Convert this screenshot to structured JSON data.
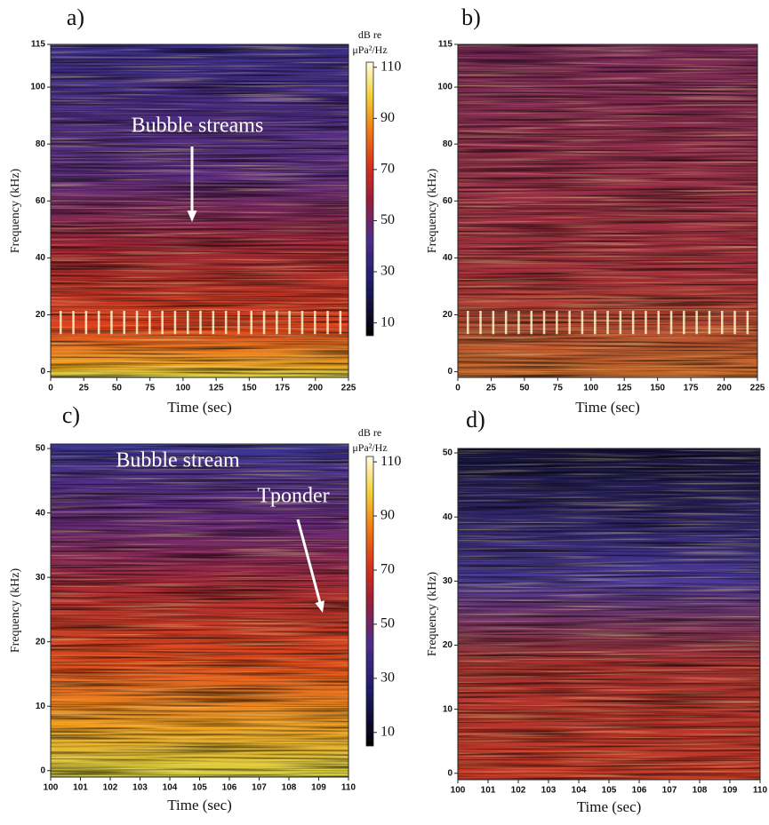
{
  "chart_data": [
    {
      "type": "heatmap",
      "panel_label": "a)",
      "xlabel": "Time (sec)",
      "ylabel": "Frequency (kHz)",
      "xlim": [
        0,
        225
      ],
      "xticks": [
        0,
        25,
        50,
        75,
        100,
        125,
        150,
        175,
        200,
        225
      ],
      "ylim": [
        -2,
        115
      ],
      "yticks": [
        0,
        20,
        40,
        60,
        80,
        100,
        115
      ],
      "colorbar": {
        "label": [
          "dB re",
          "μPa²/Hz"
        ],
        "lim": [
          5,
          112
        ],
        "ticks": [
          10,
          30,
          50,
          70,
          90,
          110
        ]
      },
      "annotations": [
        "Bubble streams"
      ]
    },
    {
      "type": "heatmap",
      "panel_label": "b)",
      "xlabel": "Time (sec)",
      "ylabel": "Frequency (kHz)",
      "xlim": [
        0,
        225
      ],
      "xticks": [
        0,
        25,
        50,
        75,
        100,
        125,
        150,
        175,
        200,
        225
      ],
      "ylim": [
        -2,
        115
      ],
      "yticks": [
        0,
        20,
        40,
        60,
        80,
        100,
        115
      ]
    },
    {
      "type": "heatmap",
      "panel_label": "c)",
      "xlabel": "Time (sec)",
      "ylabel": "Frequency (kHz)",
      "xlim": [
        100,
        110
      ],
      "xticks": [
        100,
        101,
        102,
        103,
        104,
        105,
        106,
        107,
        108,
        109,
        110
      ],
      "ylim": [
        -1,
        50.7
      ],
      "yticks": [
        0,
        10,
        20,
        30,
        40,
        50
      ],
      "colorbar": {
        "label": [
          "dB re",
          "μPa²/Hz"
        ],
        "lim": [
          5,
          112
        ],
        "ticks": [
          10,
          30,
          50,
          70,
          90,
          110
        ]
      },
      "annotations": [
        "Bubble stream",
        "Tponder"
      ]
    },
    {
      "type": "heatmap",
      "panel_label": "d)",
      "xlabel": "Time (sec)",
      "ylabel": "Frequency (kHz)",
      "xlim": [
        100,
        110
      ],
      "xticks": [
        100,
        101,
        102,
        103,
        104,
        105,
        106,
        107,
        108,
        109,
        110
      ],
      "ylim": [
        -1,
        50.7
      ],
      "yticks": [
        0,
        10,
        20,
        30,
        40,
        50
      ]
    }
  ]
}
